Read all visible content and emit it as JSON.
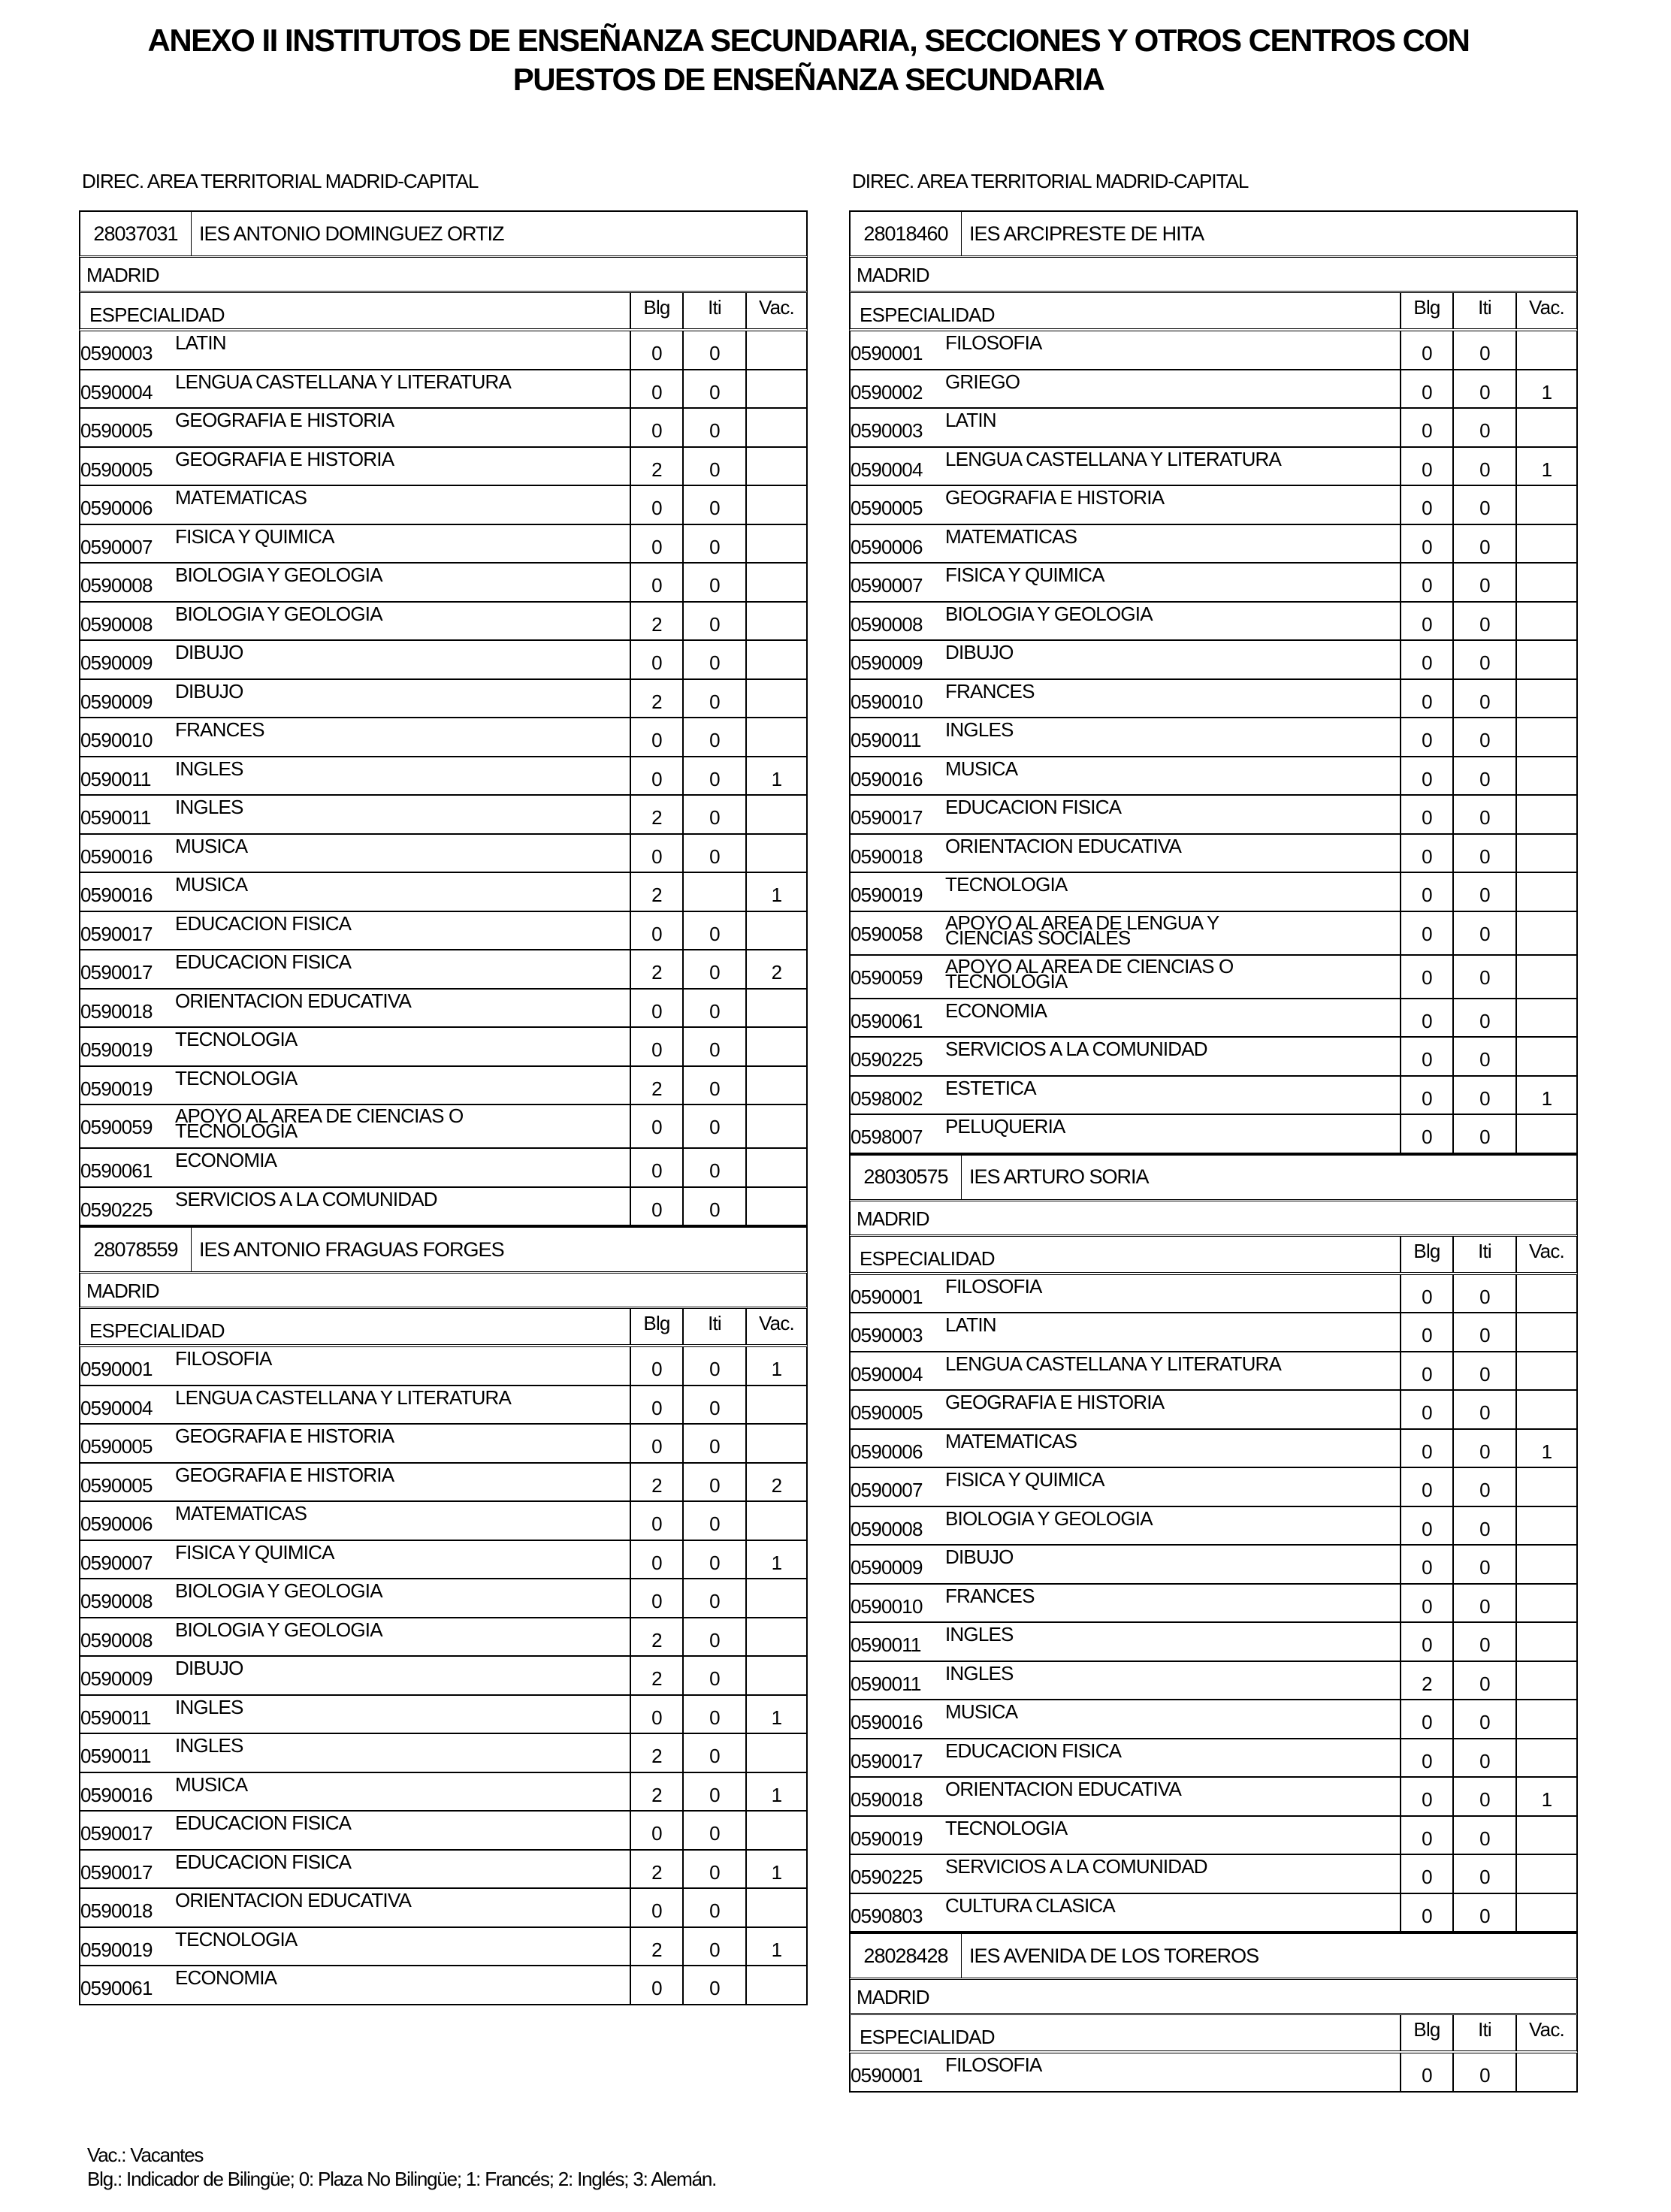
{
  "title": {
    "line1": "ANEXO II INSTITUTOS DE ENSEÑANZA SECUNDARIA, SECCIONES Y OTROS CENTROS CON",
    "line2": "PUESTOS DE ENSEÑANZA SECUNDARIA"
  },
  "table_headers": {
    "especialidad": "ESPECIALIDAD",
    "blg": "Blg",
    "iti": "Iti",
    "vac": "Vac."
  },
  "columns": [
    {
      "area": "DIREC.  AREA TERRITORIAL MADRID-CAPITAL",
      "centers": [
        {
          "code": "28037031",
          "name": "IES ANTONIO DOMINGUEZ ORTIZ",
          "locality": "MADRID",
          "rows": [
            {
              "code": "0590003",
              "name": "LATIN",
              "blg": "0",
              "iti": "0",
              "vac": ""
            },
            {
              "code": "0590004",
              "name": "LENGUA CASTELLANA Y LITERATURA",
              "blg": "0",
              "iti": "0",
              "vac": ""
            },
            {
              "code": "0590005",
              "name": "GEOGRAFIA E HISTORIA",
              "blg": "0",
              "iti": "0",
              "vac": ""
            },
            {
              "code": "0590005",
              "name": "GEOGRAFIA E HISTORIA",
              "blg": "2",
              "iti": "0",
              "vac": ""
            },
            {
              "code": "0590006",
              "name": "MATEMATICAS",
              "blg": "0",
              "iti": "0",
              "vac": ""
            },
            {
              "code": "0590007",
              "name": "FISICA Y QUIMICA",
              "blg": "0",
              "iti": "0",
              "vac": ""
            },
            {
              "code": "0590008",
              "name": "BIOLOGIA Y GEOLOGIA",
              "blg": "0",
              "iti": "0",
              "vac": ""
            },
            {
              "code": "0590008",
              "name": "BIOLOGIA Y GEOLOGIA",
              "blg": "2",
              "iti": "0",
              "vac": ""
            },
            {
              "code": "0590009",
              "name": "DIBUJO",
              "blg": "0",
              "iti": "0",
              "vac": ""
            },
            {
              "code": "0590009",
              "name": "DIBUJO",
              "blg": "2",
              "iti": "0",
              "vac": ""
            },
            {
              "code": "0590010",
              "name": "FRANCES",
              "blg": "0",
              "iti": "0",
              "vac": ""
            },
            {
              "code": "0590011",
              "name": "INGLES",
              "blg": "0",
              "iti": "0",
              "vac": "1"
            },
            {
              "code": "0590011",
              "name": "INGLES",
              "blg": "2",
              "iti": "0",
              "vac": ""
            },
            {
              "code": "0590016",
              "name": "MUSICA",
              "blg": "0",
              "iti": "0",
              "vac": ""
            },
            {
              "code": "0590016",
              "name": "MUSICA",
              "blg": "2",
              "iti": "",
              "vac": "1"
            },
            {
              "code": "0590017",
              "name": "EDUCACION FISICA",
              "blg": "0",
              "iti": "0",
              "vac": ""
            },
            {
              "code": "0590017",
              "name": "EDUCACION FISICA",
              "blg": "2",
              "iti": "0",
              "vac": "2"
            },
            {
              "code": "0590018",
              "name": "ORIENTACION EDUCATIVA",
              "blg": "0",
              "iti": "0",
              "vac": ""
            },
            {
              "code": "0590019",
              "name": "TECNOLOGIA",
              "blg": "0",
              "iti": "0",
              "vac": ""
            },
            {
              "code": "0590019",
              "name": "TECNOLOGIA",
              "blg": "2",
              "iti": "0",
              "vac": ""
            },
            {
              "code": "0590059",
              "name": "APOYO AL AREA DE CIENCIAS O TECNOLOGIA",
              "blg": "0",
              "iti": "0",
              "vac": ""
            },
            {
              "code": "0590061",
              "name": "ECONOMIA",
              "blg": "0",
              "iti": "0",
              "vac": ""
            },
            {
              "code": "0590225",
              "name": "SERVICIOS A LA COMUNIDAD",
              "blg": "0",
              "iti": "0",
              "vac": ""
            }
          ]
        },
        {
          "code": "28078559",
          "name": "IES ANTONIO FRAGUAS FORGES",
          "locality": "MADRID",
          "rows": [
            {
              "code": "0590001",
              "name": "FILOSOFIA",
              "blg": "0",
              "iti": "0",
              "vac": "1"
            },
            {
              "code": "0590004",
              "name": "LENGUA CASTELLANA Y LITERATURA",
              "blg": "0",
              "iti": "0",
              "vac": ""
            },
            {
              "code": "0590005",
              "name": "GEOGRAFIA E HISTORIA",
              "blg": "0",
              "iti": "0",
              "vac": ""
            },
            {
              "code": "0590005",
              "name": "GEOGRAFIA E HISTORIA",
              "blg": "2",
              "iti": "0",
              "vac": "2"
            },
            {
              "code": "0590006",
              "name": "MATEMATICAS",
              "blg": "0",
              "iti": "0",
              "vac": ""
            },
            {
              "code": "0590007",
              "name": "FISICA Y QUIMICA",
              "blg": "0",
              "iti": "0",
              "vac": "1"
            },
            {
              "code": "0590008",
              "name": "BIOLOGIA Y GEOLOGIA",
              "blg": "0",
              "iti": "0",
              "vac": ""
            },
            {
              "code": "0590008",
              "name": "BIOLOGIA Y GEOLOGIA",
              "blg": "2",
              "iti": "0",
              "vac": ""
            },
            {
              "code": "0590009",
              "name": "DIBUJO",
              "blg": "2",
              "iti": "0",
              "vac": ""
            },
            {
              "code": "0590011",
              "name": "INGLES",
              "blg": "0",
              "iti": "0",
              "vac": "1"
            },
            {
              "code": "0590011",
              "name": "INGLES",
              "blg": "2",
              "iti": "0",
              "vac": ""
            },
            {
              "code": "0590016",
              "name": "MUSICA",
              "blg": "2",
              "iti": "0",
              "vac": "1"
            },
            {
              "code": "0590017",
              "name": "EDUCACION FISICA",
              "blg": "0",
              "iti": "0",
              "vac": ""
            },
            {
              "code": "0590017",
              "name": "EDUCACION FISICA",
              "blg": "2",
              "iti": "0",
              "vac": "1"
            },
            {
              "code": "0590018",
              "name": "ORIENTACION EDUCATIVA",
              "blg": "0",
              "iti": "0",
              "vac": ""
            },
            {
              "code": "0590019",
              "name": "TECNOLOGIA",
              "blg": "2",
              "iti": "0",
              "vac": "1"
            },
            {
              "code": "0590061",
              "name": "ECONOMIA",
              "blg": "0",
              "iti": "0",
              "vac": ""
            }
          ]
        }
      ]
    },
    {
      "area": "DIREC.  AREA TERRITORIAL MADRID-CAPITAL",
      "centers": [
        {
          "code": "28018460",
          "name": "IES ARCIPRESTE DE HITA",
          "locality": "MADRID",
          "rows": [
            {
              "code": "0590001",
              "name": "FILOSOFIA",
              "blg": "0",
              "iti": "0",
              "vac": ""
            },
            {
              "code": "0590002",
              "name": "GRIEGO",
              "blg": "0",
              "iti": "0",
              "vac": "1"
            },
            {
              "code": "0590003",
              "name": "LATIN",
              "blg": "0",
              "iti": "0",
              "vac": ""
            },
            {
              "code": "0590004",
              "name": "LENGUA CASTELLANA Y LITERATURA",
              "blg": "0",
              "iti": "0",
              "vac": "1"
            },
            {
              "code": "0590005",
              "name": "GEOGRAFIA E HISTORIA",
              "blg": "0",
              "iti": "0",
              "vac": ""
            },
            {
              "code": "0590006",
              "name": "MATEMATICAS",
              "blg": "0",
              "iti": "0",
              "vac": ""
            },
            {
              "code": "0590007",
              "name": "FISICA Y QUIMICA",
              "blg": "0",
              "iti": "0",
              "vac": ""
            },
            {
              "code": "0590008",
              "name": "BIOLOGIA Y GEOLOGIA",
              "blg": "0",
              "iti": "0",
              "vac": ""
            },
            {
              "code": "0590009",
              "name": "DIBUJO",
              "blg": "0",
              "iti": "0",
              "vac": ""
            },
            {
              "code": "0590010",
              "name": "FRANCES",
              "blg": "0",
              "iti": "0",
              "vac": ""
            },
            {
              "code": "0590011",
              "name": "INGLES",
              "blg": "0",
              "iti": "0",
              "vac": ""
            },
            {
              "code": "0590016",
              "name": "MUSICA",
              "blg": "0",
              "iti": "0",
              "vac": ""
            },
            {
              "code": "0590017",
              "name": "EDUCACION FISICA",
              "blg": "0",
              "iti": "0",
              "vac": ""
            },
            {
              "code": "0590018",
              "name": "ORIENTACION EDUCATIVA",
              "blg": "0",
              "iti": "0",
              "vac": ""
            },
            {
              "code": "0590019",
              "name": "TECNOLOGIA",
              "blg": "0",
              "iti": "0",
              "vac": ""
            },
            {
              "code": "0590058",
              "name": "APOYO AL AREA DE LENGUA Y CIENCIAS SOCIALES",
              "blg": "0",
              "iti": "0",
              "vac": ""
            },
            {
              "code": "0590059",
              "name": "APOYO AL AREA DE CIENCIAS O TECNOLOGIA",
              "blg": "0",
              "iti": "0",
              "vac": ""
            },
            {
              "code": "0590061",
              "name": "ECONOMIA",
              "blg": "0",
              "iti": "0",
              "vac": ""
            },
            {
              "code": "0590225",
              "name": "SERVICIOS A LA COMUNIDAD",
              "blg": "0",
              "iti": "0",
              "vac": ""
            },
            {
              "code": "0598002",
              "name": "ESTETICA",
              "blg": "0",
              "iti": "0",
              "vac": "1"
            },
            {
              "code": "0598007",
              "name": "PELUQUERIA",
              "blg": "0",
              "iti": "0",
              "vac": ""
            }
          ]
        },
        {
          "code": "28030575",
          "name": "IES ARTURO SORIA",
          "locality": "MADRID",
          "rows": [
            {
              "code": "0590001",
              "name": "FILOSOFIA",
              "blg": "0",
              "iti": "0",
              "vac": ""
            },
            {
              "code": "0590003",
              "name": "LATIN",
              "blg": "0",
              "iti": "0",
              "vac": ""
            },
            {
              "code": "0590004",
              "name": "LENGUA CASTELLANA Y LITERATURA",
              "blg": "0",
              "iti": "0",
              "vac": ""
            },
            {
              "code": "0590005",
              "name": "GEOGRAFIA E HISTORIA",
              "blg": "0",
              "iti": "0",
              "vac": ""
            },
            {
              "code": "0590006",
              "name": "MATEMATICAS",
              "blg": "0",
              "iti": "0",
              "vac": "1"
            },
            {
              "code": "0590007",
              "name": "FISICA Y QUIMICA",
              "blg": "0",
              "iti": "0",
              "vac": ""
            },
            {
              "code": "0590008",
              "name": "BIOLOGIA Y GEOLOGIA",
              "blg": "0",
              "iti": "0",
              "vac": ""
            },
            {
              "code": "0590009",
              "name": "DIBUJO",
              "blg": "0",
              "iti": "0",
              "vac": ""
            },
            {
              "code": "0590010",
              "name": "FRANCES",
              "blg": "0",
              "iti": "0",
              "vac": ""
            },
            {
              "code": "0590011",
              "name": "INGLES",
              "blg": "0",
              "iti": "0",
              "vac": ""
            },
            {
              "code": "0590011",
              "name": "INGLES",
              "blg": "2",
              "iti": "0",
              "vac": ""
            },
            {
              "code": "0590016",
              "name": "MUSICA",
              "blg": "0",
              "iti": "0",
              "vac": ""
            },
            {
              "code": "0590017",
              "name": "EDUCACION FISICA",
              "blg": "0",
              "iti": "0",
              "vac": ""
            },
            {
              "code": "0590018",
              "name": "ORIENTACION EDUCATIVA",
              "blg": "0",
              "iti": "0",
              "vac": "1"
            },
            {
              "code": "0590019",
              "name": "TECNOLOGIA",
              "blg": "0",
              "iti": "0",
              "vac": ""
            },
            {
              "code": "0590225",
              "name": "SERVICIOS A LA COMUNIDAD",
              "blg": "0",
              "iti": "0",
              "vac": ""
            },
            {
              "code": "0590803",
              "name": "CULTURA CLASICA",
              "blg": "0",
              "iti": "0",
              "vac": ""
            }
          ]
        },
        {
          "code": "28028428",
          "name": "IES AVENIDA DE LOS TOREROS",
          "locality": "MADRID",
          "rows": [
            {
              "code": "0590001",
              "name": "FILOSOFIA",
              "blg": "0",
              "iti": "0",
              "vac": ""
            }
          ]
        }
      ]
    }
  ],
  "footer": {
    "line1": "Vac.: Vacantes",
    "line2": "Blg.: Indicador de Bilingüe; 0: Plaza No Bilingüe; 1: Francés; 2: Inglés; 3: Alemán."
  }
}
